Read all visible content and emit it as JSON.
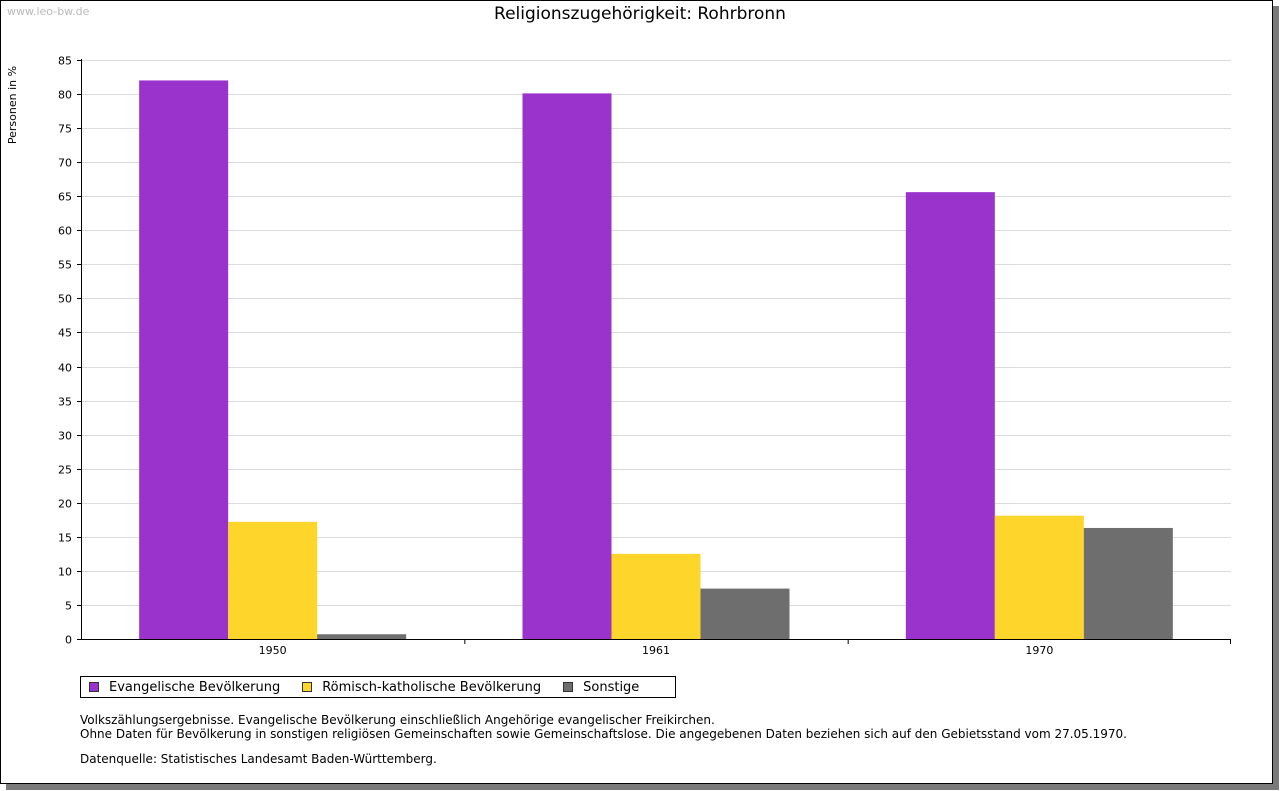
{
  "watermark": "www.leo-bw.de",
  "chart_data": {
    "type": "bar",
    "title": "Religionszugehörigkeit: Rohrbronn",
    "ylabel": "Personen in %",
    "xlabel": "",
    "ylim": [
      0,
      85
    ],
    "yticks": [
      0,
      5,
      10,
      15,
      20,
      25,
      30,
      35,
      40,
      45,
      50,
      55,
      60,
      65,
      70,
      75,
      80,
      85
    ],
    "categories": [
      "1950",
      "1961",
      "1970"
    ],
    "series": [
      {
        "name": "Evangelische Bevölkerung",
        "color": "#9933cc",
        "values": [
          82.0,
          80.1,
          65.6
        ]
      },
      {
        "name": "Römisch-katholische Bevölkerung",
        "color": "#fdd52b",
        "values": [
          17.2,
          12.5,
          18.1
        ]
      },
      {
        "name": "Sonstige",
        "color": "#6e6e6e",
        "values": [
          0.7,
          7.4,
          16.3
        ]
      }
    ],
    "grid": true,
    "legend_position": "bottom-left"
  },
  "notes": {
    "line1": "Volkszählungsergebnisse. Evangelische Bevölkerung einschließlich Angehörige evangelischer Freikirchen.",
    "line2": "Ohne Daten für Bevölkerung in sonstigen religiösen Gemeinschaften sowie Gemeinschaftslose. Die angegebenen Daten beziehen sich auf den Gebietsstand vom 27.05.1970.",
    "source": "Datenquelle: Statistisches Landesamt Baden-Württemberg."
  }
}
